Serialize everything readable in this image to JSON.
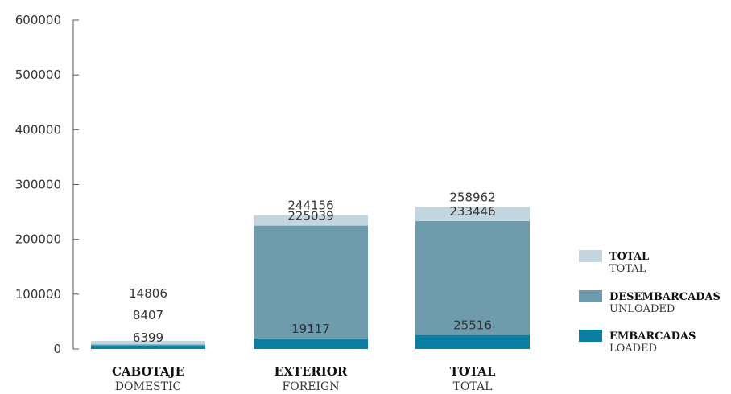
{
  "chart_data": {
    "type": "bar",
    "stacked": true,
    "categories": [
      {
        "label": "CABOTAJE",
        "sublabel": "DOMESTIC"
      },
      {
        "label": "EXTERIOR",
        "sublabel": "FOREIGN"
      },
      {
        "label": "TOTAL",
        "sublabel": "TOTAL"
      }
    ],
    "series": [
      {
        "name": "EMBARCADAS",
        "subname": "LOADED",
        "color": "#0b7fa3",
        "values": [
          6399,
          19117,
          25516
        ]
      },
      {
        "name": "DESEMBARCADAS",
        "subname": "UNLOADED",
        "color": "#6e9cad",
        "values": [
          8407,
          225039,
          233446
        ]
      },
      {
        "name": "TOTAL",
        "subname": "TOTAL",
        "color": "#c3d6df",
        "values": [
          14806,
          244156,
          258962
        ]
      }
    ],
    "data_labels": [
      [
        "6399",
        "8407",
        "14806"
      ],
      [
        "19117",
        "225039",
        "244156"
      ],
      [
        "25516",
        "233446",
        "258962"
      ]
    ],
    "ylim": [
      0,
      600000
    ],
    "yticks": [
      "0",
      "100000",
      "200000",
      "300000",
      "400000",
      "500000",
      "600000"
    ],
    "legend_position": "right",
    "title": "",
    "xlabel": "",
    "ylabel": ""
  }
}
